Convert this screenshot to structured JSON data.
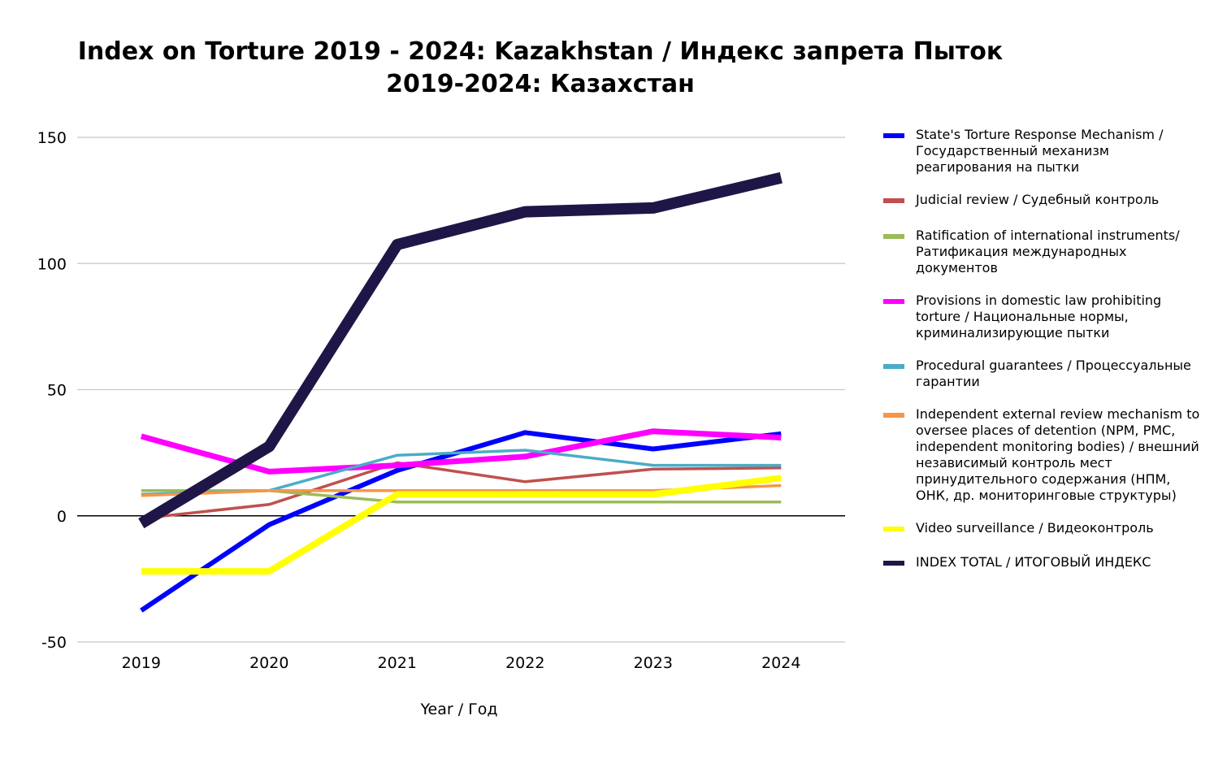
{
  "chart_data": {
    "type": "line",
    "title": "Index on Torture 2019 - 2024: Kazakhstan / Индекс запрета Пыток 2019-2024: Казахстан",
    "xlabel": "Year / Год",
    "ylabel": "",
    "x": [
      "2019",
      "2020",
      "2021",
      "2022",
      "2023",
      "2024"
    ],
    "ylim": [
      -50,
      150
    ],
    "yticks": [
      "150",
      "100",
      "50",
      "0",
      "-50"
    ],
    "yticks_values": [
      150,
      100,
      50,
      0,
      -50
    ],
    "grid": true,
    "legend_position": "right",
    "series": [
      {
        "name": "State's Torture Response Mechanism / Государственный механизм реагирования на пытки",
        "color": "#0000FF",
        "values": [
          -37.5,
          -3.5,
          18,
          33,
          26.5,
          32.5
        ]
      },
      {
        "name": "Judicial review / Судебный контроль",
        "color": "#C0504D",
        "values": [
          -1,
          4.5,
          21,
          13.5,
          18.5,
          19
        ]
      },
      {
        "name": "Ratification of international instruments/ Ратификация международных документов",
        "color": "#9BBB59",
        "values": [
          10,
          10,
          5.5,
          5.5,
          5.5,
          5.5
        ]
      },
      {
        "name": "Provisions in domestic law prohibiting torture / Национальные нормы, криминализирующие пытки",
        "color": "#FF00FF",
        "values": [
          31.5,
          17.5,
          20,
          23.5,
          33.5,
          31
        ]
      },
      {
        "name": "Procedural guarantees / Процессуальные гарантии",
        "color": "#4BACC6",
        "values": [
          8.5,
          10,
          24,
          26,
          20,
          20
        ]
      },
      {
        "name": "Independent external review mechanism to oversee places of detention (NPM, PMC, independent monitoring bodies) / внешний независимый контроль мест принудительного содержания (НПМ, ОНК, др. мониторинговые структуры)",
        "color": "#F79646",
        "values": [
          8,
          10,
          10,
          10,
          10,
          12
        ]
      },
      {
        "name": "Video surveillance / Видеоконтроль",
        "color": "#FFFF00",
        "values": [
          -22,
          -22,
          8.5,
          8.5,
          8.5,
          15
        ]
      },
      {
        "name": "INDEX TOTAL /  ИТОГОВЫЙ ИНДЕКС",
        "color": "#1F1647",
        "values": [
          -3,
          27.5,
          107.5,
          120.5,
          122,
          134
        ]
      }
    ]
  }
}
